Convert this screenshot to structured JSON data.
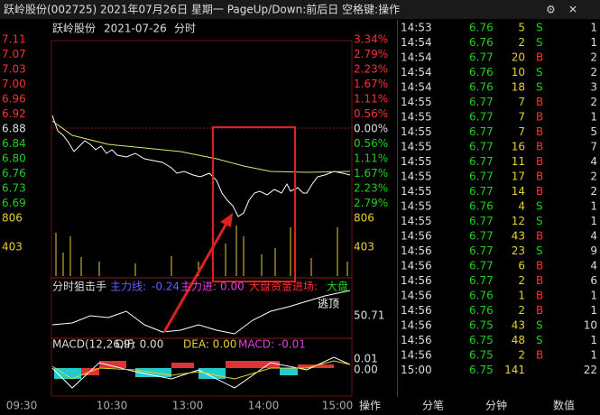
{
  "header": {
    "title": "跃岭股份(002725)  2021年07月26日 星期一  PageUp/Down:前后日  空格键:操作"
  },
  "chart": {
    "stock": "跃岭股份",
    "date": "2021-07-26",
    "mode": "分时",
    "price_labels": [
      "7.11",
      "7.07",
      "7.03",
      "7.00",
      "6.96",
      "6.92",
      "6.88",
      "6.84",
      "6.80",
      "6.76",
      "6.73",
      "6.69"
    ],
    "percent_labels": [
      "3.34%",
      "2.79%",
      "2.23%",
      "1.67%",
      "1.11%",
      "0.56%",
      "0.00%",
      "0.56%",
      "1.11%",
      "1.67%",
      "2.23%",
      "2.79%"
    ],
    "volume_labels": [
      "806",
      "403"
    ],
    "indicator": {
      "name": "分时狙击手",
      "line_label": "主力线:",
      "line_value": "-0.24",
      "in_label": "主力进:",
      "in_value": "0.00",
      "market_label": "大盘资金进场:",
      "market_tail": "大盘",
      "escape": "逃顶",
      "level": "50.71"
    },
    "macd": {
      "name": "MACD(12,26,9)",
      "dif": "DIF: 0.00",
      "dea": "DEA: 0.00",
      "macd": "MACD: -0.01",
      "levels": [
        "0.01",
        "0.00"
      ]
    },
    "time_labels": [
      "09:30",
      "10:30",
      "13:00",
      "14:00",
      "15:00"
    ]
  },
  "ticks": {
    "rows": [
      [
        "14:53",
        "6.76",
        "5",
        "S",
        "1"
      ],
      [
        "14:54",
        "6.76",
        "2",
        "S",
        "1"
      ],
      [
        "14:54",
        "6.77",
        "20",
        "B",
        "2"
      ],
      [
        "14:54",
        "6.76",
        "10",
        "S",
        "2"
      ],
      [
        "14:54",
        "6.76",
        "18",
        "S",
        "3"
      ],
      [
        "14:55",
        "6.77",
        "7",
        "B",
        "2"
      ],
      [
        "14:55",
        "6.77",
        "7",
        "B",
        "1"
      ],
      [
        "14:55",
        "6.77",
        "7",
        "B",
        "5"
      ],
      [
        "14:55",
        "6.77",
        "16",
        "B",
        "7"
      ],
      [
        "14:55",
        "6.77",
        "11",
        "B",
        "4"
      ],
      [
        "14:55",
        "6.77",
        "17",
        "B",
        "2"
      ],
      [
        "14:55",
        "6.77",
        "14",
        "B",
        "2"
      ],
      [
        "14:55",
        "6.76",
        "4",
        "S",
        "1"
      ],
      [
        "14:55",
        "6.77",
        "12",
        "S",
        "1"
      ],
      [
        "14:56",
        "6.77",
        "43",
        "B",
        "4"
      ],
      [
        "14:56",
        "6.77",
        "23",
        "S",
        "9"
      ],
      [
        "14:56",
        "6.77",
        "6",
        "B",
        "4"
      ],
      [
        "14:56",
        "6.77",
        "2",
        "B",
        "6"
      ],
      [
        "14:56",
        "6.76",
        "1",
        "B",
        "1"
      ],
      [
        "14:56",
        "6.76",
        "2",
        "B",
        "1"
      ],
      [
        "14:56",
        "6.75",
        "43",
        "S",
        "10"
      ],
      [
        "14:56",
        "6.75",
        "48",
        "S",
        "1"
      ],
      [
        "14:56",
        "6.75",
        "2",
        "B",
        "1"
      ],
      [
        "15:00",
        "6.75",
        "141",
        "",
        "22"
      ]
    ]
  },
  "tabs": [
    "操作",
    "分笔",
    "分钟",
    "数值"
  ]
}
